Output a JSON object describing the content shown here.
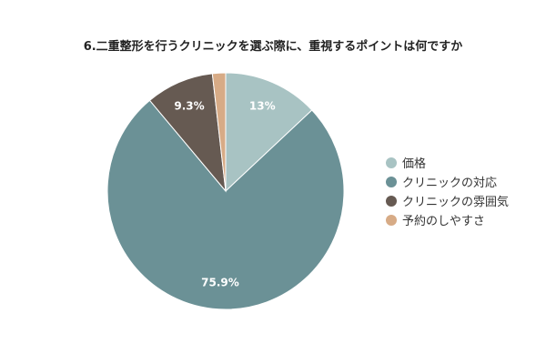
{
  "chart_data": {
    "type": "pie",
    "title": "6.二重整形を行うクリニックを選ぶ際に、重視するポイントは何ですか",
    "categories": [
      "価格",
      "クリニックの対応",
      "クリニックの雰囲気",
      "予約のしやすさ"
    ],
    "values": [
      13.0,
      75.9,
      9.3,
      1.8
    ],
    "data_labels": [
      "13%",
      "75.9%",
      "9.3%",
      ""
    ],
    "colors": [
      "#a8c3c3",
      "#6b9196",
      "#665a52",
      "#d7ab86"
    ],
    "legend_position": "right"
  }
}
